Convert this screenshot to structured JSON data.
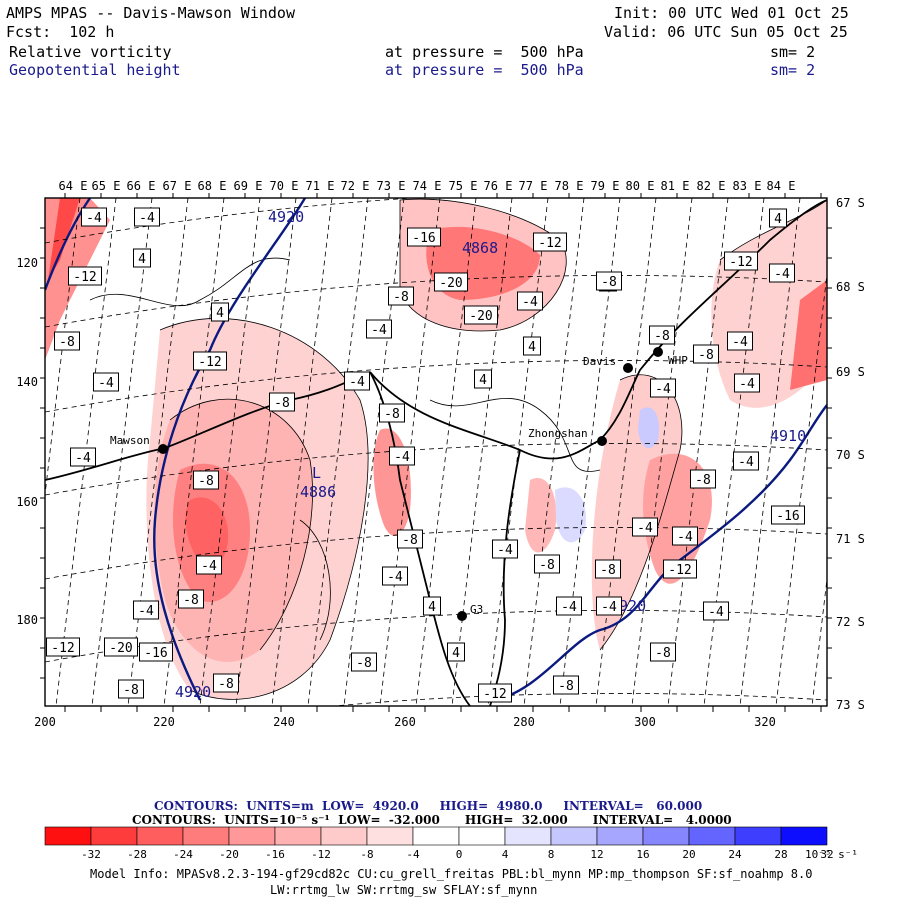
{
  "header": {
    "line1_left": "AMPS MPAS -- Davis-Mawson Window",
    "line1_right": "Init: 00 UTC Wed 01 Oct 25",
    "line2_left": "Fcst:  102 h",
    "line2_right": "Valid: 06 UTC Sun 05 Oct 25",
    "field1": {
      "name": "Relative vorticity",
      "level": "at pressure =  500 hPa",
      "sm": "sm= 2"
    },
    "field2": {
      "name": "Geopotential height",
      "level": "at pressure =  500 hPa",
      "sm": "sm= 2"
    }
  },
  "map": {
    "lon_labels": [
      "64 E",
      "65 E",
      "66 E",
      "67 E",
      "68 E",
      "69 E",
      "70 E",
      "71 E",
      "72 E",
      "73 E",
      "74 E",
      "75 E",
      "76 E",
      "77 E",
      "78 E",
      "79 E",
      "80 E",
      "81 E",
      "82 E",
      "83 E",
      "84 E"
    ],
    "lat_labels": [
      "67 S",
      "68 S",
      "69 S",
      "70 S",
      "71 S",
      "72 S",
      "73 S"
    ],
    "x_ticks": [
      "200",
      "220",
      "240",
      "260",
      "280",
      "300",
      "320"
    ],
    "y_ticks": [
      "120",
      "140",
      "160",
      "180"
    ],
    "stations": [
      {
        "name": "Mawson"
      },
      {
        "name": "Davis"
      },
      {
        "name": "Zhongshan"
      },
      {
        "name": "G3"
      },
      {
        "name": "WHP"
      }
    ],
    "height_labels": [
      "4920",
      "4868",
      "4886",
      "4910",
      "4920",
      "4920"
    ],
    "low_label": "L",
    "vort_labels": [
      "-4",
      "-4",
      "4",
      "-12",
      "-8",
      "-4",
      "-16",
      "-20",
      "-12",
      "-8",
      "-20",
      "-4",
      "4",
      "4",
      "-8",
      "-4",
      "4",
      "4",
      "-12",
      "-8",
      "-4",
      "-8",
      "-4",
      "-4",
      "-8",
      "-4",
      "-8",
      "-4",
      "-12",
      "-20",
      "-16",
      "-8",
      "-8",
      "-8",
      "4",
      "4",
      "-4",
      "-8",
      "-4",
      "-8",
      "-8",
      "-4",
      "-4",
      "-8",
      "-4",
      "-4",
      "-4",
      "-12",
      "-8",
      "-4",
      "-16",
      "-4",
      "-8",
      "-4",
      "-4",
      "-12",
      "-4",
      "4",
      "-8",
      "-12",
      "-8"
    ]
  },
  "legend": {
    "line1": "CONTOURS:  UNITS=m  LOW=  4920.0     HIGH=  4980.0     INTERVAL=   60.000",
    "line2": "CONTOURS:  UNITS=10⁻⁵ s⁻¹  LOW=  -32.000      HIGH=  32.000      INTERVAL=   4.0000",
    "ticks": [
      "-32",
      "-28",
      "-24",
      "-20",
      "-16",
      "-12",
      "-8",
      "-4",
      "0",
      "4",
      "8",
      "12",
      "16",
      "20",
      "24",
      "28",
      "32"
    ],
    "units": "10⁻⁵ s⁻¹",
    "colors": [
      "#ff1010",
      "#ff3c3c",
      "#ff5e5e",
      "#ff7c7c",
      "#ff9898",
      "#ffb2b2",
      "#ffcaca",
      "#ffe0e0",
      "#ffffff",
      "#ffffff",
      "#e4e4ff",
      "#c6c6ff",
      "#a6a6ff",
      "#8686ff",
      "#6464ff",
      "#3e3eff",
      "#0e0eff"
    ]
  },
  "footer": {
    "line1": "Model Info: MPASv8.2.3-194-gf29cd82c CU:cu_grell_freitas PBL:bl_mynn MP:mp_thompson SF:sf_noahmp 8.0",
    "line2": "LW:rrtmg_lw SW:rrtmg_sw SFLAY:sf_mynn"
  }
}
